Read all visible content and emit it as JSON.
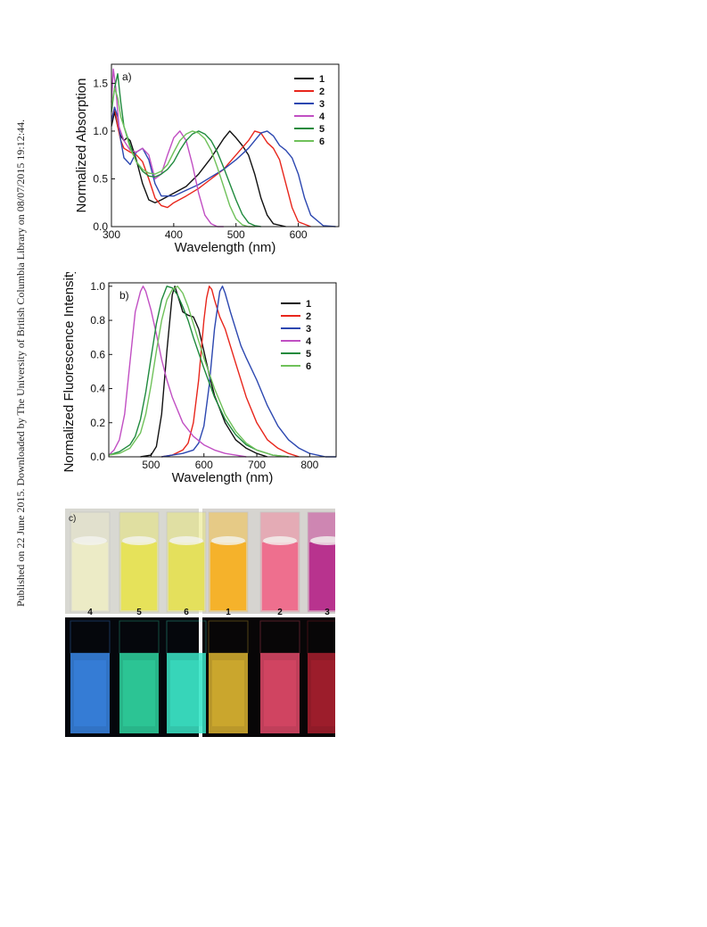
{
  "sidebar_text": "Published on 22 June 2015. Downloaded by The University of British Columbia Library on 08/07/2015 19:12:44.",
  "chart_data": [
    {
      "type": "line",
      "panel_label": "a)",
      "xlabel": "Wavelength (nm)",
      "ylabel": "Normalized Absorption",
      "xlim": [
        300,
        665
      ],
      "ylim": [
        0.0,
        1.7
      ],
      "xticks": [
        300,
        400,
        500,
        600
      ],
      "yticks": [
        0.0,
        0.5,
        1.0,
        1.5
      ],
      "legend_position": "top-right",
      "series": [
        {
          "name": "1",
          "color": "#111111",
          "x": [
            300,
            305,
            310,
            315,
            320,
            325,
            330,
            340,
            350,
            360,
            370,
            380,
            400,
            420,
            440,
            460,
            480,
            490,
            500,
            510,
            520,
            530,
            540,
            550,
            560,
            580
          ],
          "y": [
            1.05,
            1.2,
            1.05,
            0.95,
            0.9,
            0.93,
            0.9,
            0.7,
            0.45,
            0.28,
            0.25,
            0.28,
            0.35,
            0.42,
            0.55,
            0.72,
            0.92,
            1.0,
            0.93,
            0.85,
            0.75,
            0.55,
            0.3,
            0.12,
            0.03,
            0.0
          ]
        },
        {
          "name": "2",
          "color": "#e8261c",
          "x": [
            300,
            305,
            310,
            315,
            320,
            330,
            340,
            350,
            360,
            370,
            380,
            390,
            400,
            420,
            440,
            460,
            480,
            500,
            520,
            530,
            540,
            550,
            560,
            570,
            580,
            590,
            600,
            620
          ],
          "y": [
            1.1,
            1.25,
            1.05,
            0.9,
            0.82,
            0.78,
            0.75,
            0.68,
            0.5,
            0.3,
            0.22,
            0.2,
            0.25,
            0.32,
            0.4,
            0.5,
            0.6,
            0.75,
            0.9,
            1.0,
            0.98,
            0.88,
            0.82,
            0.7,
            0.45,
            0.2,
            0.05,
            0.0
          ]
        },
        {
          "name": "3",
          "color": "#2c47b0",
          "x": [
            300,
            305,
            310,
            315,
            320,
            330,
            340,
            350,
            360,
            370,
            380,
            400,
            420,
            440,
            460,
            480,
            500,
            520,
            540,
            550,
            560,
            570,
            580,
            590,
            600,
            610,
            620,
            640,
            660
          ],
          "y": [
            1.1,
            1.25,
            1.15,
            0.9,
            0.72,
            0.65,
            0.78,
            0.82,
            0.7,
            0.45,
            0.32,
            0.32,
            0.38,
            0.44,
            0.52,
            0.6,
            0.7,
            0.82,
            0.98,
            1.0,
            0.95,
            0.85,
            0.8,
            0.72,
            0.55,
            0.3,
            0.12,
            0.01,
            0.0
          ]
        },
        {
          "name": "4",
          "color": "#c14fc3",
          "x": [
            300,
            303,
            307,
            312,
            320,
            330,
            340,
            350,
            360,
            370,
            380,
            390,
            400,
            410,
            420,
            430,
            440,
            450,
            460,
            470,
            480
          ],
          "y": [
            1.3,
            1.65,
            1.45,
            1.05,
            0.9,
            0.8,
            0.78,
            0.82,
            0.75,
            0.5,
            0.55,
            0.75,
            0.93,
            1.0,
            0.9,
            0.65,
            0.35,
            0.12,
            0.03,
            0.0,
            0.0
          ]
        },
        {
          "name": "5",
          "color": "#1f8a3d",
          "x": [
            300,
            305,
            310,
            315,
            320,
            330,
            340,
            350,
            360,
            370,
            380,
            390,
            400,
            410,
            420,
            430,
            440,
            450,
            460,
            470,
            480,
            490,
            500,
            510,
            520,
            530,
            540
          ],
          "y": [
            1.2,
            1.45,
            1.6,
            1.3,
            1.05,
            0.85,
            0.68,
            0.58,
            0.53,
            0.52,
            0.55,
            0.6,
            0.68,
            0.8,
            0.9,
            0.97,
            1.0,
            0.97,
            0.9,
            0.78,
            0.62,
            0.45,
            0.28,
            0.13,
            0.04,
            0.01,
            0.0
          ]
        },
        {
          "name": "6",
          "color": "#6fc15a",
          "x": [
            300,
            305,
            310,
            315,
            320,
            330,
            340,
            350,
            360,
            370,
            380,
            390,
            400,
            410,
            420,
            430,
            440,
            450,
            460,
            470,
            480,
            490,
            500,
            510,
            520,
            530
          ],
          "y": [
            1.25,
            1.45,
            1.35,
            1.15,
            1.05,
            0.82,
            0.68,
            0.6,
            0.56,
            0.55,
            0.58,
            0.65,
            0.78,
            0.9,
            0.97,
            1.0,
            0.98,
            0.92,
            0.8,
            0.62,
            0.42,
            0.22,
            0.08,
            0.02,
            0.0,
            0.0
          ]
        }
      ]
    },
    {
      "type": "line",
      "panel_label": "b)",
      "xlabel": "Wavelength (nm)",
      "ylabel": "Normalized Fluorescence Intensity",
      "xlim": [
        420,
        850
      ],
      "ylim": [
        0.0,
        1.02
      ],
      "xticks": [
        500,
        600,
        700,
        800
      ],
      "yticks": [
        0.0,
        0.2,
        0.4,
        0.6,
        0.8,
        1.0
      ],
      "legend_position": "top-right",
      "series": [
        {
          "name": "1",
          "color": "#111111",
          "x": [
            480,
            500,
            510,
            520,
            530,
            540,
            545,
            550,
            555,
            560,
            570,
            580,
            590,
            600,
            610,
            620,
            640,
            660,
            680,
            700,
            720
          ],
          "y": [
            0.0,
            0.01,
            0.06,
            0.25,
            0.62,
            0.95,
            1.0,
            0.95,
            0.9,
            0.85,
            0.83,
            0.82,
            0.75,
            0.62,
            0.48,
            0.36,
            0.2,
            0.1,
            0.05,
            0.02,
            0.0
          ]
        },
        {
          "name": "2",
          "color": "#e8261c",
          "x": [
            520,
            540,
            560,
            570,
            580,
            590,
            600,
            605,
            610,
            615,
            620,
            630,
            640,
            660,
            680,
            700,
            720,
            740,
            760,
            780
          ],
          "y": [
            0.0,
            0.01,
            0.04,
            0.08,
            0.2,
            0.45,
            0.8,
            0.93,
            1.0,
            0.98,
            0.92,
            0.82,
            0.75,
            0.55,
            0.35,
            0.2,
            0.1,
            0.05,
            0.02,
            0.0
          ]
        },
        {
          "name": "3",
          "color": "#2c47b0",
          "x": [
            520,
            540,
            560,
            580,
            590,
            600,
            610,
            620,
            630,
            635,
            640,
            650,
            660,
            670,
            680,
            700,
            720,
            740,
            760,
            780,
            800,
            830,
            850
          ],
          "y": [
            0.0,
            0.01,
            0.02,
            0.04,
            0.08,
            0.18,
            0.42,
            0.75,
            0.97,
            1.0,
            0.96,
            0.85,
            0.75,
            0.65,
            0.58,
            0.45,
            0.3,
            0.18,
            0.1,
            0.05,
            0.02,
            0.0,
            0.0
          ]
        },
        {
          "name": "4",
          "color": "#c14fc3",
          "x": [
            420,
            430,
            440,
            450,
            460,
            470,
            480,
            485,
            490,
            500,
            510,
            520,
            530,
            540,
            560,
            580,
            600,
            620,
            640,
            660,
            680
          ],
          "y": [
            0.01,
            0.04,
            0.1,
            0.25,
            0.55,
            0.85,
            0.97,
            1.0,
            0.97,
            0.86,
            0.72,
            0.57,
            0.45,
            0.35,
            0.2,
            0.12,
            0.07,
            0.04,
            0.02,
            0.01,
            0.0
          ]
        },
        {
          "name": "5",
          "color": "#1f8a3d",
          "x": [
            420,
            440,
            460,
            470,
            480,
            490,
            500,
            510,
            520,
            530,
            540,
            550,
            560,
            570,
            580,
            600,
            620,
            640,
            660,
            680,
            700,
            730,
            760
          ],
          "y": [
            0.01,
            0.03,
            0.07,
            0.12,
            0.22,
            0.38,
            0.58,
            0.78,
            0.92,
            1.0,
            0.99,
            0.95,
            0.88,
            0.8,
            0.7,
            0.52,
            0.35,
            0.22,
            0.13,
            0.07,
            0.04,
            0.01,
            0.0
          ]
        },
        {
          "name": "6",
          "color": "#6fc15a",
          "x": [
            420,
            440,
            460,
            480,
            490,
            500,
            510,
            520,
            530,
            540,
            550,
            560,
            570,
            580,
            600,
            620,
            640,
            660,
            680,
            700,
            730,
            760
          ],
          "y": [
            0.01,
            0.02,
            0.05,
            0.14,
            0.25,
            0.42,
            0.62,
            0.8,
            0.92,
            0.98,
            1.0,
            0.96,
            0.88,
            0.78,
            0.58,
            0.4,
            0.25,
            0.15,
            0.08,
            0.04,
            0.01,
            0.0
          ]
        }
      ]
    }
  ],
  "photo_panel": {
    "panel_label": "c)",
    "daylight": [
      {
        "sample": "4",
        "cuvette": "#e9e8c9",
        "liquid": "#ecebc6"
      },
      {
        "sample": "5",
        "cuvette": "#e8e57a",
        "liquid": "#e6e25a"
      },
      {
        "sample": "6",
        "cuvette": "#e8e67e",
        "liquid": "#e4e05c"
      },
      {
        "sample": "1",
        "cuvette": "#f4c24a",
        "liquid": "#f5b22b"
      },
      {
        "sample": "2",
        "cuvette": "#f08aa0",
        "liquid": "#ee6f8e"
      },
      {
        "sample": "3",
        "cuvette": "#c9489a",
        "liquid": "#b8338e"
      }
    ],
    "uv": [
      {
        "sample": "4",
        "glow": "#3a86e6"
      },
      {
        "sample": "5",
        "glow": "#2fd4a0"
      },
      {
        "sample": "6",
        "glow": "#3ce6c8"
      },
      {
        "sample": "1",
        "glow": "#d9b330"
      },
      {
        "sample": "2",
        "glow": "#e04a68"
      },
      {
        "sample": "3",
        "glow": "#a8202e"
      }
    ]
  }
}
